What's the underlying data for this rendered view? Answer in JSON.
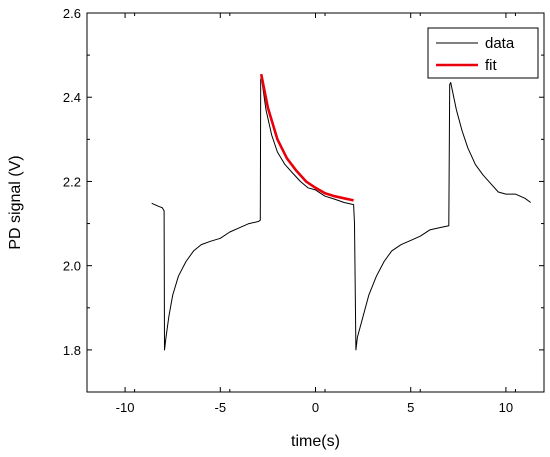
{
  "chart_data": {
    "type": "line",
    "title": "",
    "xlabel": "time(s)",
    "ylabel": "PD signal (V)",
    "xlim": [
      -12,
      12
    ],
    "ylim": [
      1.7,
      2.6
    ],
    "x_ticks": [
      -10,
      -5,
      0,
      5,
      10
    ],
    "x_tick_labels": [
      "-10",
      "-5",
      "0",
      "5",
      "10"
    ],
    "y_ticks": [
      1.8,
      2.0,
      2.2,
      2.4,
      2.6
    ],
    "y_tick_labels": [
      "1.8",
      "2.0",
      "2.2",
      "2.4",
      "2.6"
    ],
    "grid": false,
    "legend_position": "top-right",
    "colors": {
      "data": "#000000",
      "fit": "#e8000b"
    },
    "series": [
      {
        "name": "data",
        "x": [
          -8.6,
          -8.2,
          -8.05,
          -7.95,
          -7.93,
          -7.85,
          -7.7,
          -7.5,
          -7.2,
          -6.8,
          -6.4,
          -6.0,
          -5.5,
          -5.0,
          -4.5,
          -4.0,
          -3.5,
          -3.0,
          -2.9,
          -2.88,
          -2.85,
          -2.6,
          -2.3,
          -2.0,
          -1.6,
          -1.2,
          -0.8,
          -0.4,
          0.0,
          0.5,
          1.0,
          1.5,
          2.0,
          2.05,
          2.12,
          2.2,
          2.5,
          2.8,
          3.2,
          3.6,
          4.0,
          4.5,
          5.0,
          5.5,
          6.0,
          6.5,
          7.0,
          7.05,
          7.1,
          7.4,
          7.7,
          8.0,
          8.4,
          8.8,
          9.2,
          9.6,
          10.0,
          10.5,
          11.0,
          11.3
        ],
        "y": [
          2.148,
          2.14,
          2.138,
          2.13,
          1.8,
          1.83,
          1.88,
          1.93,
          1.975,
          2.01,
          2.035,
          2.05,
          2.058,
          2.065,
          2.08,
          2.09,
          2.1,
          2.105,
          2.108,
          2.44,
          2.45,
          2.37,
          2.31,
          2.27,
          2.24,
          2.22,
          2.2,
          2.185,
          2.18,
          2.165,
          2.158,
          2.15,
          2.145,
          2.1,
          1.8,
          1.83,
          1.88,
          1.93,
          1.975,
          2.01,
          2.035,
          2.05,
          2.06,
          2.07,
          2.085,
          2.09,
          2.095,
          2.43,
          2.435,
          2.37,
          2.32,
          2.28,
          2.24,
          2.215,
          2.195,
          2.175,
          2.17,
          2.17,
          2.16,
          2.15
        ]
      },
      {
        "name": "fit",
        "x": [
          -2.85,
          -2.5,
          -2.0,
          -1.5,
          -1.0,
          -0.5,
          0.0,
          0.5,
          1.0,
          1.5,
          2.0
        ],
        "y": [
          2.455,
          2.375,
          2.3,
          2.255,
          2.225,
          2.2,
          2.185,
          2.172,
          2.165,
          2.16,
          2.155
        ]
      }
    ]
  }
}
